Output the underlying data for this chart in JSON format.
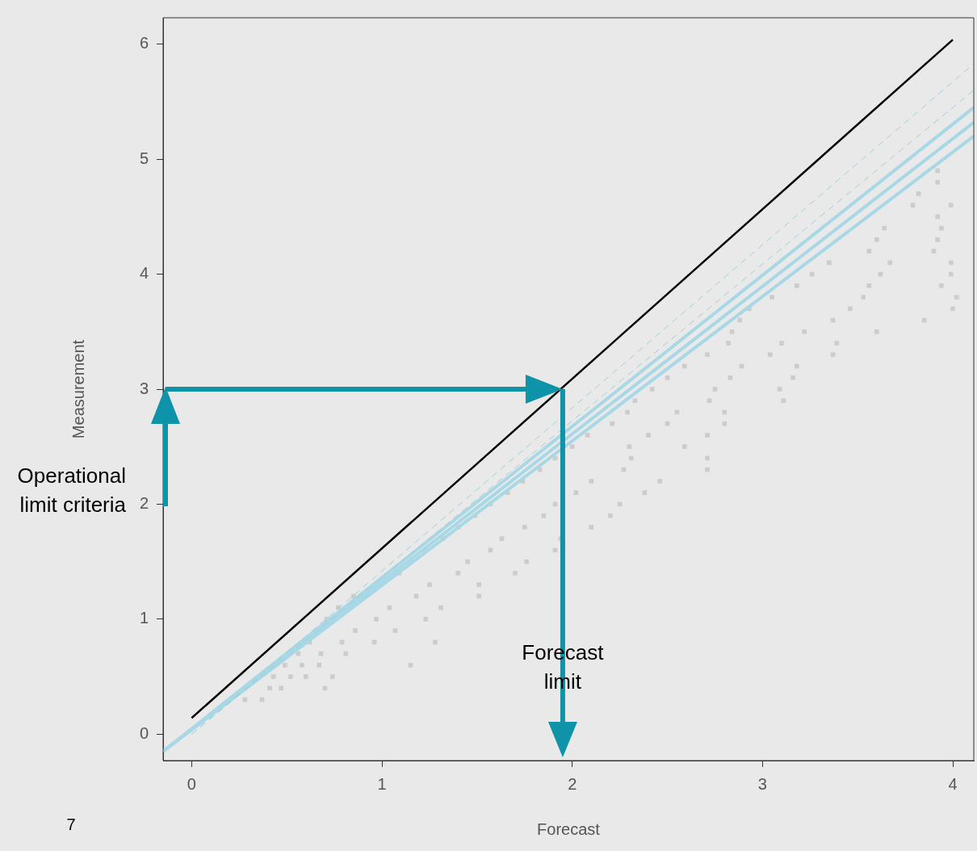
{
  "chart_data": {
    "type": "scatter",
    "xlabel": "Forecast",
    "ylabel": "Measurement",
    "xlim": [
      -0.15,
      4.11
    ],
    "ylim": [
      -0.23,
      6.23
    ],
    "xticks": [
      0,
      1,
      2,
      3,
      4
    ],
    "yticks": [
      0,
      1,
      2,
      3,
      4,
      5,
      6
    ],
    "grid": false,
    "legend": false,
    "marker": "square",
    "series": [
      {
        "color": "#cccccc",
        "x": [
          0.28,
          0.37,
          0.41,
          0.47,
          0.7,
          0.43,
          0.52,
          0.6,
          0.74,
          0.49,
          0.58,
          0.67,
          1.15,
          0.56,
          0.68,
          0.81,
          0.62,
          0.79,
          0.96,
          1.28,
          0.86,
          1.07,
          0.71,
          0.97,
          1.23,
          0.77,
          1.04,
          1.31,
          0.85,
          1.18,
          1.51,
          1.25,
          1.51,
          1.09,
          1.4,
          1.7,
          1.15,
          1.45,
          1.76,
          1.23,
          1.57,
          1.91,
          1.32,
          1.63,
          1.94,
          1.4,
          1.75,
          2.1,
          1.49,
          1.85,
          2.2,
          1.57,
          1.91,
          2.25,
          1.66,
          2.02,
          2.38,
          1.74,
          2.1,
          2.46,
          1.83,
          2.27,
          2.71,
          1.91,
          2.31,
          2.71,
          2.0,
          2.3,
          2.59,
          2.08,
          2.4,
          2.71,
          2.21,
          2.5,
          2.8,
          2.29,
          2.55,
          2.8,
          2.33,
          2.72,
          3.11,
          2.42,
          2.75,
          3.09,
          2.5,
          2.83,
          3.16,
          2.59,
          2.89,
          3.18,
          2.71,
          3.04,
          3.37,
          2.82,
          3.1,
          3.39,
          2.84,
          3.22,
          3.6,
          2.88,
          3.37,
          3.85,
          2.93,
          3.46,
          4.0,
          3.05,
          3.53,
          4.02,
          3.18,
          3.56,
          3.94,
          3.26,
          3.62,
          3.99,
          3.35,
          3.67,
          3.99,
          3.56,
          3.9,
          3.6,
          3.92,
          3.64,
          3.94,
          3.92,
          3.79,
          3.99,
          3.82,
          3.92,
          3.92
        ],
        "values": [
          0.3,
          0.3,
          0.4,
          0.4,
          0.4,
          0.5,
          0.5,
          0.5,
          0.5,
          0.6,
          0.6,
          0.6,
          0.6,
          0.7,
          0.7,
          0.7,
          0.8,
          0.8,
          0.8,
          0.8,
          0.9,
          0.9,
          1.0,
          1.0,
          1.0,
          1.1,
          1.1,
          1.1,
          1.2,
          1.2,
          1.2,
          1.3,
          1.3,
          1.4,
          1.4,
          1.4,
          1.5,
          1.5,
          1.5,
          1.6,
          1.6,
          1.6,
          1.7,
          1.7,
          1.7,
          1.8,
          1.8,
          1.8,
          1.9,
          1.9,
          1.9,
          2.0,
          2.0,
          2.0,
          2.1,
          2.1,
          2.1,
          2.2,
          2.2,
          2.2,
          2.3,
          2.3,
          2.3,
          2.4,
          2.4,
          2.4,
          2.5,
          2.5,
          2.5,
          2.6,
          2.6,
          2.6,
          2.7,
          2.7,
          2.7,
          2.8,
          2.8,
          2.8,
          2.9,
          2.9,
          2.9,
          3.0,
          3.0,
          3.0,
          3.1,
          3.1,
          3.1,
          3.2,
          3.2,
          3.2,
          3.3,
          3.3,
          3.3,
          3.4,
          3.4,
          3.4,
          3.5,
          3.5,
          3.5,
          3.6,
          3.6,
          3.6,
          3.7,
          3.7,
          3.7,
          3.8,
          3.8,
          3.8,
          3.9,
          3.9,
          3.9,
          4.0,
          4.0,
          4.0,
          4.1,
          4.1,
          4.1,
          4.2,
          4.2,
          4.3,
          4.3,
          4.4,
          4.4,
          4.5,
          4.6,
          4.6,
          4.7,
          4.8,
          4.9
        ]
      },
      {
        "type": "line",
        "marker": "none",
        "color": "#a8d8e6",
        "x": [
          -0.15,
          4.11
        ],
        "values": [
          -0.15,
          5.45
        ]
      },
      {
        "type": "line",
        "marker": "none",
        "color": "#a8d8e6",
        "x": [
          -0.15,
          4.11
        ],
        "values": [
          -0.15,
          5.32
        ]
      },
      {
        "type": "line",
        "marker": "none",
        "color": "#a8d8e6",
        "x": [
          -0.15,
          4.11
        ],
        "values": [
          -0.15,
          5.2
        ]
      },
      {
        "type": "line",
        "marker": "none",
        "line_style": "dashed",
        "color": "#9fcfd6",
        "x": [
          0,
          4.11
        ],
        "values": [
          0,
          5.83
        ]
      },
      {
        "type": "line",
        "marker": "none",
        "line_style": "dashed",
        "color": "#9fcfd6",
        "x": [
          0,
          4.11
        ],
        "values": [
          0,
          5.6
        ]
      },
      {
        "type": "line",
        "marker": "none",
        "color": "#000000",
        "x": [
          0,
          4
        ],
        "values": [
          0.14,
          6.04
        ]
      }
    ],
    "ref_lines": [
      {
        "axis": "y",
        "value": 3,
        "color": "#0e93a8"
      },
      {
        "axis": "x",
        "value": 1.95,
        "color": "#0e93a8"
      }
    ],
    "annotations": [
      "Operational limit criteria",
      {
        "text": "Forecast limit",
        "x": 1.95,
        "y": 0.57
      },
      "7"
    ]
  }
}
